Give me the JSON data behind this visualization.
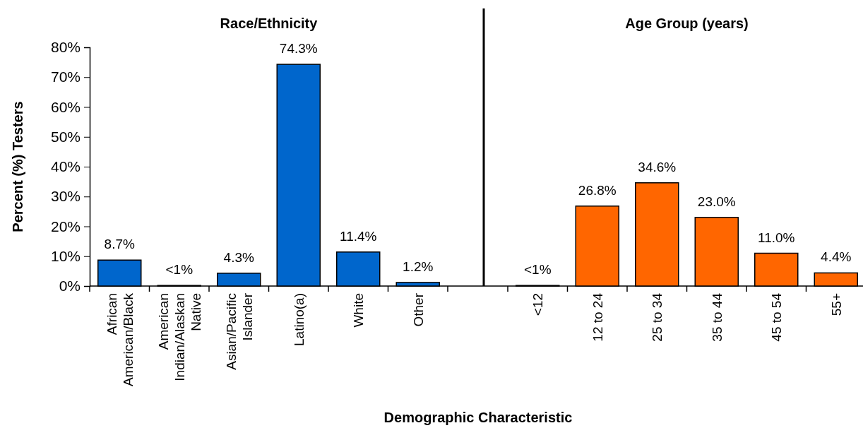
{
  "chart_data": [
    {
      "type": "bar",
      "title": "Race/Ethnicity",
      "ylabel": "Percent (%) Testers",
      "xlabel": "Demographic Characteristic",
      "categories": [
        "African American/Black",
        "American Indian/Alaskan Native",
        "Asian/Pacific Islander",
        "Latino(a)",
        "White",
        "Other"
      ],
      "series": [
        {
          "color": "#0066cc",
          "values": [
            8.7,
            0.2,
            4.3,
            74.3,
            11.4,
            1.2
          ],
          "value_labels": [
            "8.7%",
            "<1%",
            "4.3%",
            "74.3%",
            "11.4%",
            "1.2%"
          ]
        }
      ],
      "ylim": [
        0,
        80
      ],
      "yticks": [
        {
          "value": 0,
          "label": "0%"
        },
        {
          "value": 10,
          "label": "10%"
        },
        {
          "value": 20,
          "label": "20%"
        },
        {
          "value": 30,
          "label": "30%"
        },
        {
          "value": 40,
          "label": "40%"
        },
        {
          "value": 50,
          "label": "50%"
        },
        {
          "value": 60,
          "label": "60%"
        },
        {
          "value": 70,
          "label": "70%"
        },
        {
          "value": 80,
          "label": "80%"
        }
      ]
    },
    {
      "type": "bar",
      "title": "Age Group (years)",
      "categories": [
        "<12",
        "12 to 24",
        "25 to 34",
        "35 to 44",
        "45 to 54",
        "55+"
      ],
      "series": [
        {
          "color": "#ff6600",
          "values": [
            0.2,
            26.8,
            34.6,
            23.0,
            11.0,
            4.4
          ],
          "value_labels": [
            "<1%",
            "26.8%",
            "34.6%",
            "23.0%",
            "11.0%",
            "4.4%"
          ]
        }
      ],
      "ylim": [
        0,
        80
      ],
      "tick_labels": "x"
    }
  ]
}
